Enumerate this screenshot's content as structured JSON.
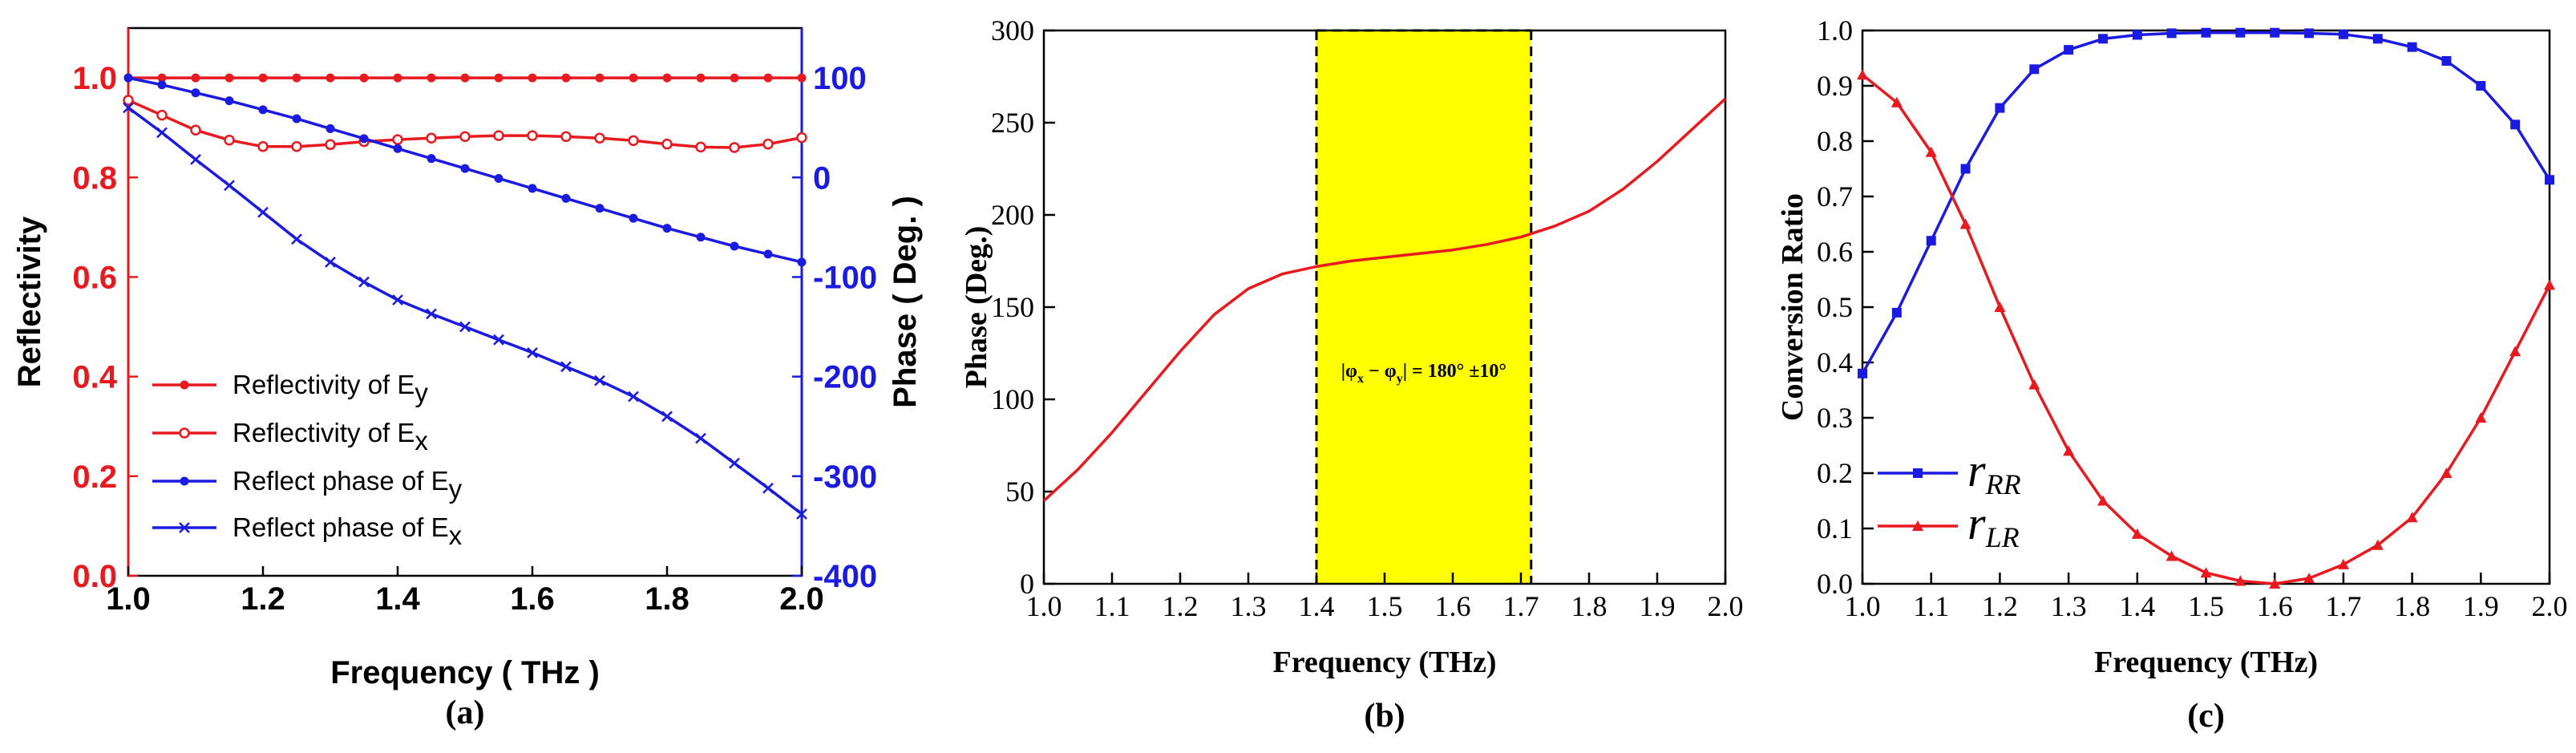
{
  "chart_data": [
    {
      "panel": "(a)",
      "type": "line",
      "xlabel": "Frequency ( THz )",
      "ylabel_left": "Reflectivity",
      "ylabel_right": "Phase ( Deg. )",
      "xlim": [
        1.0,
        2.0
      ],
      "ylim_left": [
        0.0,
        1.1
      ],
      "ylim_right": [
        -400,
        150
      ],
      "x_ticks": [
        "1.0",
        "1.2",
        "1.4",
        "1.6",
        "1.8",
        "2.0"
      ],
      "y_left_ticks": [
        "0.0",
        "0.2",
        "0.4",
        "0.6",
        "0.8",
        "1.0"
      ],
      "y_right_ticks": [
        "-400",
        "-300",
        "-200",
        "-100",
        "0",
        "100"
      ],
      "colors": {
        "left_axis": "#e8191f",
        "right_axis": "#1a1ae0"
      },
      "legend_position": "bottom-left",
      "x": [
        1.0,
        1.05,
        1.1,
        1.15,
        1.2,
        1.25,
        1.3,
        1.35,
        1.4,
        1.45,
        1.5,
        1.55,
        1.6,
        1.65,
        1.7,
        1.75,
        1.8,
        1.85,
        1.9,
        1.95,
        2.0
      ],
      "series": [
        {
          "name": "Reflectivity of E",
          "subscript": "y",
          "axis": "left",
          "color": "#e8191f",
          "marker": "filled-circle",
          "values": [
            1.0,
            1.0,
            1.0,
            1.0,
            1.0,
            1.0,
            1.0,
            1.0,
            1.0,
            1.0,
            1.0,
            1.0,
            1.0,
            1.0,
            1.0,
            1.0,
            1.0,
            1.0,
            1.0,
            1.0,
            1.0
          ]
        },
        {
          "name": "Reflectivity of E",
          "subscript": "x",
          "axis": "left",
          "color": "#e8191f",
          "marker": "open-circle",
          "values": [
            0.955,
            0.925,
            0.895,
            0.875,
            0.862,
            0.862,
            0.866,
            0.872,
            0.876,
            0.879,
            0.882,
            0.884,
            0.884,
            0.882,
            0.879,
            0.874,
            0.867,
            0.861,
            0.86,
            0.867,
            0.88
          ]
        },
        {
          "name": "Reflect phase of E",
          "subscript": "y",
          "axis": "right",
          "color": "#1a1ae0",
          "marker": "filled-circle",
          "values": [
            100,
            93,
            85,
            77,
            68,
            59,
            49,
            39,
            29,
            19,
            9,
            -1,
            -11,
            -21,
            -31,
            -41,
            -51,
            -60,
            -69,
            -77,
            -85
          ]
        },
        {
          "name": "Reflect phase of E",
          "subscript": "x",
          "axis": "right",
          "color": "#1a1ae0",
          "marker": "x",
          "values": [
            70,
            45,
            18,
            -8,
            -35,
            -62,
            -85,
            -105,
            -123,
            -137,
            -150,
            -163,
            -176,
            -190,
            -204,
            -220,
            -240,
            -262,
            -287,
            -312,
            -338
          ]
        }
      ],
      "panel_label": "(a)"
    },
    {
      "panel": "(b)",
      "type": "line",
      "xlabel": "Frequency (THz)",
      "ylabel": "Phase (Deg.)",
      "xlim": [
        1.0,
        2.0
      ],
      "ylim": [
        0,
        300
      ],
      "x_ticks": [
        "1.0",
        "1.1",
        "1.2",
        "1.3",
        "1.4",
        "1.5",
        "1.6",
        "1.7",
        "1.8",
        "1.9",
        "2.0"
      ],
      "y_ticks": [
        "0",
        "50",
        "100",
        "150",
        "200",
        "250",
        "300"
      ],
      "highlight_band": {
        "x_range": [
          1.4,
          1.715
        ],
        "color": "#ffff00",
        "label_prefix": "|",
        "label_phi": "φ",
        "label_sub_x": "x",
        "label_minus": " − ",
        "label_sub_y": "y",
        "label_rest": "| = 180° ±10°"
      },
      "x": [
        1.0,
        1.05,
        1.1,
        1.15,
        1.2,
        1.25,
        1.3,
        1.35,
        1.4,
        1.45,
        1.5,
        1.55,
        1.6,
        1.65,
        1.7,
        1.75,
        1.8,
        1.85,
        1.9,
        1.95,
        2.0
      ],
      "series": [
        {
          "color": "#e8191f",
          "values": [
            45,
            62,
            82,
            104,
            126,
            146,
            160,
            168,
            172,
            175,
            177,
            179,
            181,
            184,
            188,
            194,
            202,
            214,
            229,
            246,
            263
          ]
        }
      ],
      "panel_label": "(b)"
    },
    {
      "panel": "(c)",
      "type": "line",
      "xlabel": "Frequency (THz)",
      "ylabel": "Conversion Ratio",
      "xlim": [
        1.0,
        2.0
      ],
      "ylim": [
        0.0,
        1.0
      ],
      "x_ticks": [
        "1.0",
        "1.1",
        "1.2",
        "1.3",
        "1.4",
        "1.5",
        "1.6",
        "1.7",
        "1.8",
        "1.9",
        "2.0"
      ],
      "y_ticks": [
        "0.0",
        "0.1",
        "0.2",
        "0.3",
        "0.4",
        "0.5",
        "0.6",
        "0.7",
        "0.8",
        "0.9",
        "1.0"
      ],
      "legend_position": "bottom-left",
      "x": [
        1.0,
        1.05,
        1.1,
        1.15,
        1.2,
        1.25,
        1.3,
        1.35,
        1.4,
        1.45,
        1.5,
        1.55,
        1.6,
        1.65,
        1.7,
        1.75,
        1.8,
        1.85,
        1.9,
        1.95,
        2.0
      ],
      "series": [
        {
          "name": "r",
          "subscript": "RR",
          "color": "#1a1ae0",
          "marker": "filled-square",
          "values": [
            0.38,
            0.49,
            0.62,
            0.75,
            0.86,
            0.93,
            0.965,
            0.985,
            0.992,
            0.995,
            0.996,
            0.996,
            0.996,
            0.995,
            0.993,
            0.985,
            0.97,
            0.945,
            0.9,
            0.83,
            0.73
          ]
        },
        {
          "name": "r",
          "subscript": "LR",
          "color": "#e8191f",
          "marker": "filled-triangle",
          "values": [
            0.92,
            0.87,
            0.78,
            0.65,
            0.5,
            0.36,
            0.24,
            0.15,
            0.09,
            0.05,
            0.02,
            0.005,
            0.0,
            0.01,
            0.035,
            0.07,
            0.12,
            0.2,
            0.3,
            0.42,
            0.54
          ]
        }
      ],
      "panel_label": "(c)"
    }
  ]
}
